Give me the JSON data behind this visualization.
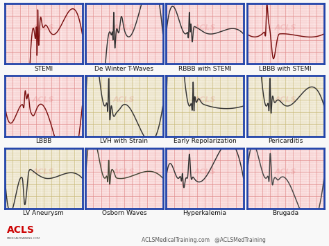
{
  "bg_color": "#f0f0f0",
  "border_color": "#2244aa",
  "labels": [
    [
      "STEMI",
      "De Winter T-Waves",
      "RBBB with STEMI",
      "LBBB with STEMI"
    ],
    [
      "LBBB",
      "LVH with Strain",
      "Early Repolarization",
      "Pericarditis"
    ],
    [
      "LV Aneurysm",
      "Osborn Waves",
      "Hyperkalemia",
      "Brugada"
    ]
  ],
  "bg_colors": [
    [
      "pink",
      "pink",
      "pink",
      "pink"
    ],
    [
      "pink",
      "tan",
      "tan",
      "tan"
    ],
    [
      "tan",
      "pink",
      "pink",
      "pink"
    ]
  ],
  "acls_red": "#cc0000",
  "footer_text": "ACLSMedicalTraining.com   @ACLSMedTraining",
  "label_fontsize": 6.5,
  "watermark": "ACLS"
}
